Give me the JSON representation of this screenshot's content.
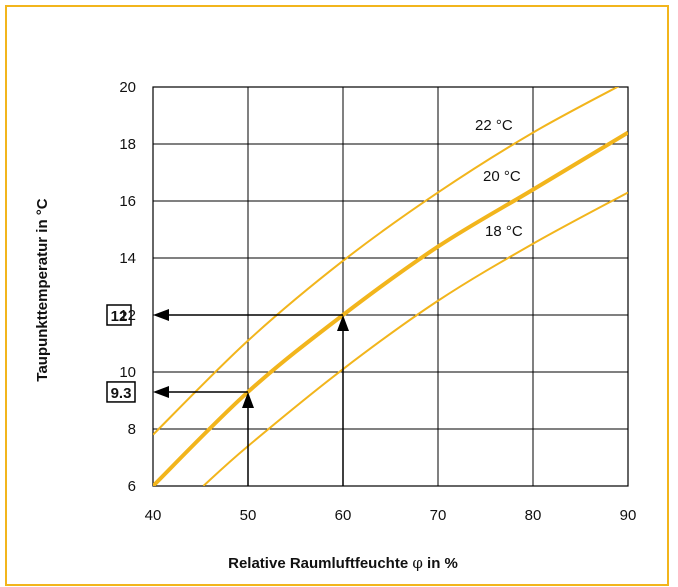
{
  "chart_data": {
    "type": "line",
    "xlabel_main": "Relative Raumluftfeuchte ",
    "xlabel_symbol": "φ",
    "xlabel_tail": " in %",
    "ylabel": "Taupunkttemperatur  in °C",
    "xlim": [
      40,
      90
    ],
    "ylim": [
      6,
      20
    ],
    "x_ticks": [
      40,
      50,
      60,
      70,
      80,
      90
    ],
    "y_ticks": [
      6,
      8,
      10,
      12,
      14,
      16,
      18,
      20
    ],
    "grid": true,
    "series": [
      {
        "name": "22 °C",
        "x": [
          40,
          50,
          60,
          70,
          80,
          90
        ],
        "y": [
          7.8,
          11.1,
          13.9,
          16.3,
          18.4,
          20.2
        ]
      },
      {
        "name": "20 °C",
        "x": [
          40,
          50,
          60,
          70,
          80,
          90
        ],
        "y": [
          6.0,
          9.3,
          12.0,
          14.4,
          16.4,
          18.4
        ]
      },
      {
        "name": "18 °C",
        "x": [
          45.3,
          50,
          60,
          70,
          80,
          90
        ],
        "y": [
          6.0,
          7.4,
          10.1,
          12.5,
          14.5,
          16.3
        ]
      }
    ],
    "annotations": [
      {
        "label": "12",
        "x": 60,
        "y": 12
      },
      {
        "label": "9.3",
        "x": 50,
        "y": 9.3
      }
    ],
    "colors": {
      "curve": "#f2b51c",
      "frame": "#f2b51c",
      "arrow": "#000000"
    }
  }
}
